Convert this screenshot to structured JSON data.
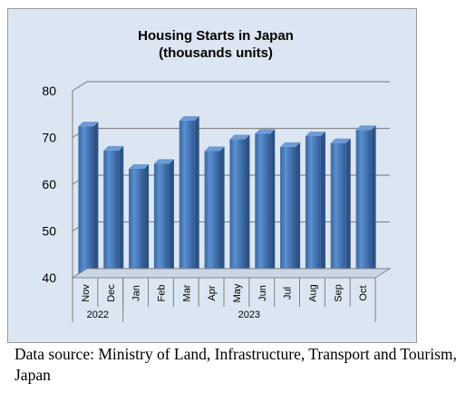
{
  "chart_data": {
    "type": "bar",
    "title": "Housing Starts in Japan",
    "subtitle": "(thousands units)",
    "categories": [
      "Nov",
      "Dec",
      "Jan",
      "Feb",
      "Mar",
      "Apr",
      "May",
      "Jun",
      "Jul",
      "Aug",
      "Sep",
      "Oct"
    ],
    "years": [
      {
        "label": "2022",
        "count": 2
      },
      {
        "label": "2023",
        "count": 10
      }
    ],
    "values": [
      72.4,
      67.2,
      63.3,
      64.4,
      73.6,
      67.1,
      69.6,
      70.8,
      68.0,
      70.3,
      68.8,
      71.6
    ],
    "ylim": [
      40,
      80
    ],
    "yticks": [
      40,
      50,
      60,
      70,
      80
    ],
    "grid": true,
    "bar_color": "#4a7ebb",
    "background_color": "#dce6f2"
  },
  "caption": "Data source: Ministry of Land, Infrastructure, Transport and Tourism, Japan"
}
